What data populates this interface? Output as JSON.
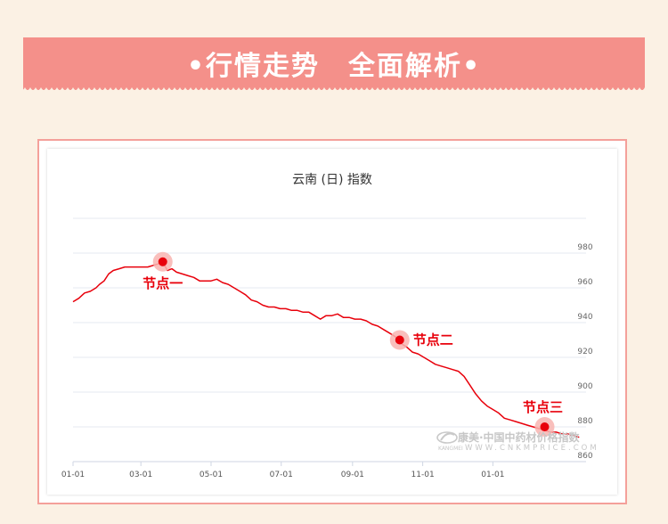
{
  "banner": {
    "title": "•行情走势　全面解析•",
    "color": "#f4908a"
  },
  "chart_data": {
    "type": "line",
    "title": "云南 (日) 指数",
    "xlabel": "",
    "ylabel": "",
    "x_ticks": [
      "01-01",
      "03-01",
      "05-01",
      "07-01",
      "09-01",
      "11-01",
      "01-01"
    ],
    "y_ticks": [
      860,
      880,
      900,
      920,
      940,
      960,
      980
    ],
    "ylim": [
      860,
      1000
    ],
    "y_axis_side": "right",
    "grid": true,
    "line_color": "#e8000b",
    "series": [
      {
        "values": [
          [
            0,
            952
          ],
          [
            5,
            954
          ],
          [
            10,
            957
          ],
          [
            15,
            958
          ],
          [
            20,
            960
          ],
          [
            23,
            962
          ],
          [
            27,
            964
          ],
          [
            31,
            968
          ],
          [
            35,
            970
          ],
          [
            40,
            971
          ],
          [
            45,
            972
          ],
          [
            50,
            972
          ],
          [
            55,
            972
          ],
          [
            60,
            972
          ],
          [
            65,
            972
          ],
          [
            70,
            973
          ],
          [
            75,
            974
          ],
          [
            78,
            975
          ],
          [
            82,
            970
          ],
          [
            86,
            971
          ],
          [
            90,
            969
          ],
          [
            95,
            968
          ],
          [
            100,
            967
          ],
          [
            105,
            966
          ],
          [
            110,
            964
          ],
          [
            115,
            964
          ],
          [
            120,
            964
          ],
          [
            125,
            965
          ],
          [
            130,
            963
          ],
          [
            135,
            962
          ],
          [
            140,
            960
          ],
          [
            145,
            958
          ],
          [
            150,
            956
          ],
          [
            155,
            953
          ],
          [
            160,
            952
          ],
          [
            165,
            950
          ],
          [
            170,
            949
          ],
          [
            175,
            949
          ],
          [
            180,
            948
          ],
          [
            185,
            948
          ],
          [
            190,
            947
          ],
          [
            195,
            947
          ],
          [
            200,
            946
          ],
          [
            205,
            946
          ],
          [
            210,
            944
          ],
          [
            215,
            942
          ],
          [
            220,
            944
          ],
          [
            225,
            944
          ],
          [
            230,
            945
          ],
          [
            235,
            943
          ],
          [
            240,
            943
          ],
          [
            245,
            942
          ],
          [
            250,
            942
          ],
          [
            255,
            941
          ],
          [
            260,
            939
          ],
          [
            265,
            938
          ],
          [
            270,
            936
          ],
          [
            275,
            934
          ],
          [
            280,
            932
          ],
          [
            285,
            928
          ],
          [
            290,
            926
          ],
          [
            295,
            923
          ],
          [
            300,
            922
          ],
          [
            305,
            920
          ],
          [
            310,
            918
          ],
          [
            315,
            916
          ],
          [
            320,
            915
          ],
          [
            325,
            914
          ],
          [
            330,
            913
          ],
          [
            335,
            912
          ],
          [
            340,
            909
          ],
          [
            345,
            904
          ],
          [
            350,
            899
          ],
          [
            355,
            895
          ],
          [
            360,
            892
          ],
          [
            365,
            890
          ],
          [
            370,
            888
          ],
          [
            375,
            885
          ],
          [
            380,
            884
          ],
          [
            385,
            883
          ],
          [
            390,
            882
          ],
          [
            395,
            881
          ],
          [
            400,
            880
          ],
          [
            405,
            879
          ],
          [
            410,
            878
          ],
          [
            415,
            877
          ],
          [
            420,
            877
          ],
          [
            425,
            876
          ],
          [
            430,
            876
          ],
          [
            435,
            875
          ],
          [
            440,
            874
          ]
        ]
      }
    ],
    "x_tick_days": [
      0,
      59,
      120,
      181,
      243,
      304,
      365
    ],
    "annotations": [
      {
        "label": "节点一",
        "x": 78,
        "y": 975
      },
      {
        "label": "节点二",
        "x": 284,
        "y": 930
      },
      {
        "label": "节点三",
        "x": 410,
        "y": 880
      }
    ]
  },
  "watermark": {
    "main": "康美·中国中药材价格指数",
    "sub_brand": "KANGMEI",
    "url": "WWW.CNKMPRICE.COM"
  }
}
